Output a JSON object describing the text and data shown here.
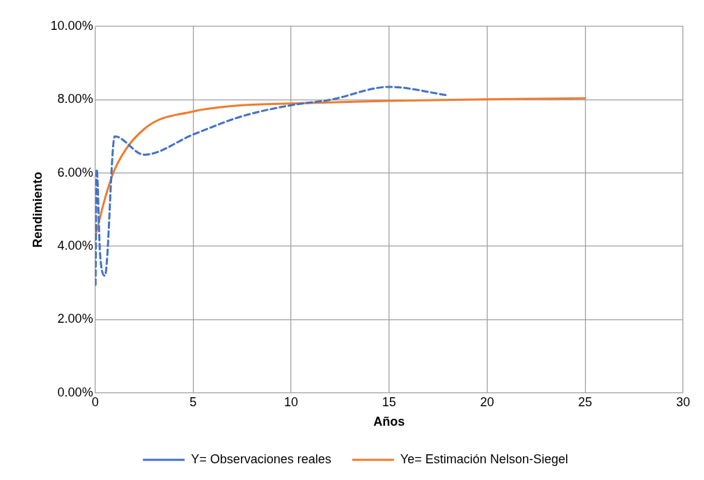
{
  "chart_data": {
    "type": "line",
    "xlabel": "Años",
    "ylabel": "Rendimiento",
    "xlim": [
      0,
      30
    ],
    "xticks": [
      0,
      5,
      10,
      15,
      20,
      25,
      30
    ],
    "ylim": [
      0,
      10
    ],
    "yticks": [
      {
        "value": 0,
        "label": "0.00%"
      },
      {
        "value": 2,
        "label": "2.00%"
      },
      {
        "value": 4,
        "label": "4.00%"
      },
      {
        "value": 6,
        "label": "6.00%"
      },
      {
        "value": 8,
        "label": "8.00%"
      },
      {
        "value": 10,
        "label": "10.00%"
      }
    ],
    "grid": true,
    "legend": "bottom",
    "marker": "none",
    "series": [
      {
        "name": "Y= Observaciones reales",
        "color": "#4472c4",
        "line_style": "dashed",
        "x": [
          0.02,
          0.08,
          0.25,
          0.5,
          1,
          2.5,
          5,
          7.5,
          10,
          12,
          15,
          18
        ],
        "values": [
          2.95,
          6.1,
          3.8,
          3.2,
          7.0,
          6.5,
          7.05,
          7.55,
          7.85,
          8.0,
          8.35,
          8.12
        ]
      },
      {
        "name": "Ye= Estimación Nelson-Siegel",
        "color": "#ed7d31",
        "line_style": "solid",
        "x": [
          0.02,
          0.5,
          1,
          2.5,
          5,
          7.5,
          10,
          15,
          20,
          25
        ],
        "values": [
          4.3,
          5.3,
          6.1,
          7.2,
          7.68,
          7.85,
          7.9,
          7.97,
          8.01,
          8.04
        ]
      }
    ]
  }
}
